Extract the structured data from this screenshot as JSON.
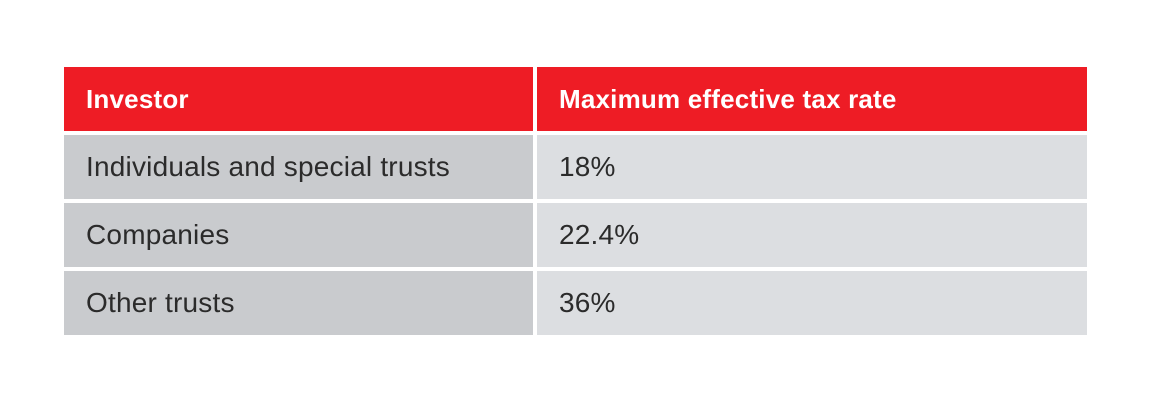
{
  "table": {
    "headers": [
      "Investor",
      "Maximum effective tax rate"
    ],
    "rows": [
      {
        "investor": "Individuals and special trusts",
        "rate": "18%"
      },
      {
        "investor": "Companies",
        "rate": "22.4%"
      },
      {
        "investor": "Other trusts",
        "rate": "36%"
      }
    ]
  },
  "colors": {
    "header_bg": "#ee1c25",
    "header_text": "#ffffff",
    "first_col_bg": "#c9cbce",
    "second_col_bg": "#dcdee1",
    "body_text": "#2b2b2b"
  }
}
